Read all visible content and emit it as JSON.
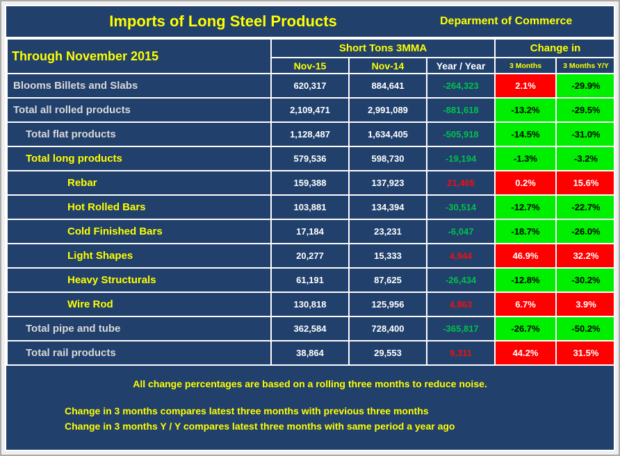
{
  "window": {
    "department": "Deparment of Commerce"
  },
  "chart_data": {
    "type": "table",
    "title": "Imports of Long Steel Products",
    "period": "Through November 2015",
    "group_headers": [
      {
        "label": "Short Tons 3MMA",
        "span": 3
      },
      {
        "label": "Change in",
        "span": 2
      }
    ],
    "columns": [
      "Nov-15",
      "Nov-14",
      "Year / Year",
      "3 Months",
      "3 Months Y/Y"
    ],
    "rows": [
      {
        "label": "Blooms Billets and Slabs",
        "indent": 0,
        "tone": "silver",
        "nov_15": "620,317",
        "nov_14": "884,641",
        "year_over_year": "-264,323",
        "change_3_months": "2.1%",
        "change_3_months_yy": "-29.9%"
      },
      {
        "label": "Total all rolled products",
        "indent": 0,
        "tone": "silver",
        "nov_15": "2,109,471",
        "nov_14": "2,991,089",
        "year_over_year": "-881,618",
        "change_3_months": "-13.2%",
        "change_3_months_yy": "-29.5%"
      },
      {
        "label": "Total flat products",
        "indent": 1,
        "tone": "silver",
        "nov_15": "1,128,487",
        "nov_14": "1,634,405",
        "year_over_year": "-505,918",
        "change_3_months": "-14.5%",
        "change_3_months_yy": "-31.0%"
      },
      {
        "label": "Total long products",
        "indent": 1,
        "tone": "yellow",
        "nov_15": "579,536",
        "nov_14": "598,730",
        "year_over_year": "-19,194",
        "change_3_months": "-1.3%",
        "change_3_months_yy": "-3.2%"
      },
      {
        "label": "Rebar",
        "indent": 2,
        "tone": "yellow",
        "nov_15": "159,388",
        "nov_14": "137,923",
        "year_over_year": "21,465",
        "change_3_months": "0.2%",
        "change_3_months_yy": "15.6%"
      },
      {
        "label": "Hot Rolled Bars",
        "indent": 2,
        "tone": "yellow",
        "nov_15": "103,881",
        "nov_14": "134,394",
        "year_over_year": "-30,514",
        "change_3_months": "-12.7%",
        "change_3_months_yy": "-22.7%"
      },
      {
        "label": "Cold Finished Bars",
        "indent": 2,
        "tone": "yellow",
        "nov_15": "17,184",
        "nov_14": "23,231",
        "year_over_year": "-6,047",
        "change_3_months": "-18.7%",
        "change_3_months_yy": "-26.0%"
      },
      {
        "label": "Light Shapes",
        "indent": 2,
        "tone": "yellow",
        "nov_15": "20,277",
        "nov_14": "15,333",
        "year_over_year": "4,944",
        "change_3_months": "46.9%",
        "change_3_months_yy": "32.2%"
      },
      {
        "label": "Heavy Structurals",
        "indent": 2,
        "tone": "yellow",
        "nov_15": "61,191",
        "nov_14": "87,625",
        "year_over_year": "-26,434",
        "change_3_months": "-12.8%",
        "change_3_months_yy": "-30.2%"
      },
      {
        "label": "Wire Rod",
        "indent": 2,
        "tone": "yellow",
        "nov_15": "130,818",
        "nov_14": "125,956",
        "year_over_year": "4,863",
        "change_3_months": "6.7%",
        "change_3_months_yy": "3.9%"
      },
      {
        "label": "Total pipe and tube",
        "indent": 1,
        "tone": "silver",
        "nov_15": "362,584",
        "nov_14": "728,400",
        "year_over_year": "-365,817",
        "change_3_months": "-26.7%",
        "change_3_months_yy": "-50.2%"
      },
      {
        "label": "Total rail products",
        "indent": 1,
        "tone": "silver",
        "nov_15": "38,864",
        "nov_14": "29,553",
        "year_over_year": "9,311",
        "change_3_months": "44.2%",
        "change_3_months_yy": "31.5%"
      }
    ],
    "notes": [
      "All change percentages are based on a rolling three months to reduce noise.",
      "Change in 3 months compares latest three months with previous three months",
      "Change in 3 months  Y / Y compares latest three months with same period a year ago"
    ]
  },
  "colors": {
    "navy": "#21406C",
    "yellow": "#FFFF00",
    "silver": "#D9D9D9",
    "increase_bg": "#FF0000",
    "decrease_bg": "#00EE00",
    "increase_text": "#EE1111",
    "decrease_text": "#00C24A"
  }
}
